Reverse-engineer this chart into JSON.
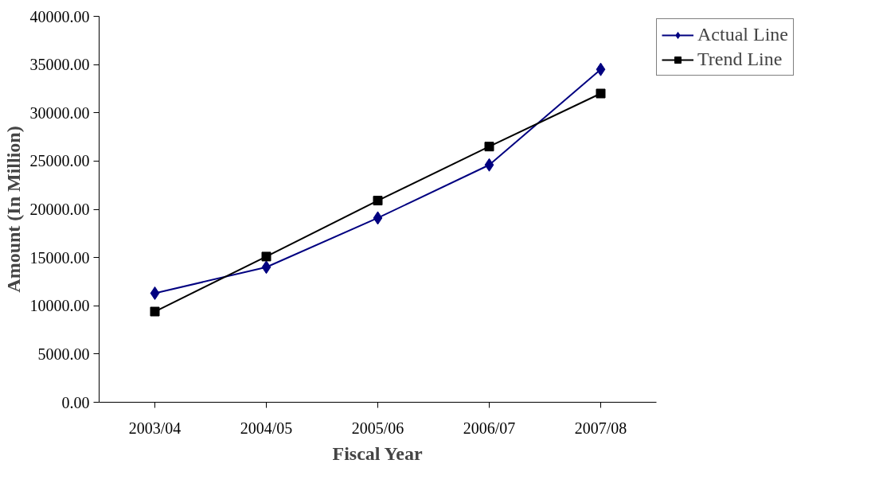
{
  "chart_data": {
    "type": "line",
    "xlabel": "Fiscal Year",
    "ylabel": "Amount (In Million)",
    "categories": [
      "2003/04",
      "2004/05",
      "2005/06",
      "2006/07",
      "2007/08"
    ],
    "series": [
      {
        "name": "Actual Line",
        "color": "#000080",
        "marker": "diamond",
        "values": [
          11300,
          14000,
          19100,
          24600,
          34500
        ]
      },
      {
        "name": "Trend Line",
        "color": "#000000",
        "marker": "square",
        "values": [
          9400,
          15100,
          20900,
          26500,
          32000
        ]
      }
    ],
    "ylim": [
      0,
      40000
    ],
    "yticks": [
      {
        "value": 0,
        "label": "0.00"
      },
      {
        "value": 5000,
        "label": "5000.00"
      },
      {
        "value": 10000,
        "label": "10000.00"
      },
      {
        "value": 15000,
        "label": "15000.00"
      },
      {
        "value": 20000,
        "label": "20000.00"
      },
      {
        "value": 25000,
        "label": "25000.00"
      },
      {
        "value": 30000,
        "label": "30000.00"
      },
      {
        "value": 35000,
        "label": "35000.00"
      },
      {
        "value": 40000,
        "label": "40000.00"
      }
    ],
    "grid": false,
    "legend": "top right",
    "line_style": "solid"
  }
}
